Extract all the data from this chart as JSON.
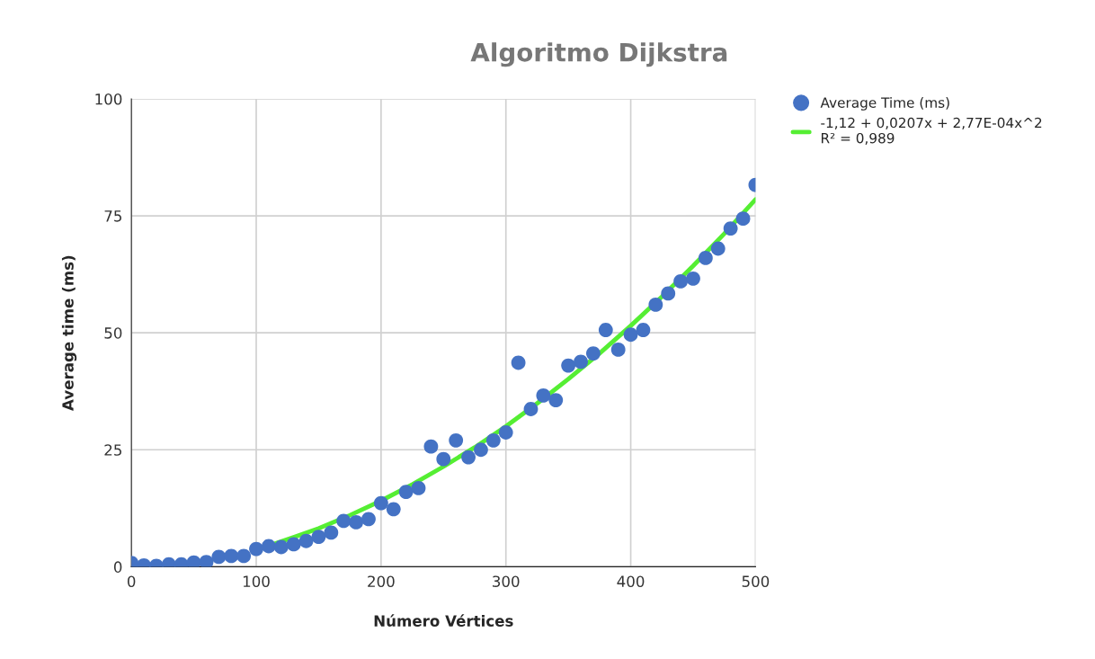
{
  "chart_data": {
    "type": "scatter",
    "title": "Algoritmo Dijkstra",
    "xlabel": "Número Vértices",
    "ylabel": "Average time (ms)",
    "xlim": [
      0,
      500
    ],
    "xticks": [
      0,
      100,
      200,
      300,
      400,
      500
    ],
    "ylim": [
      0,
      100
    ],
    "yticks": [
      0,
      25,
      50,
      75,
      100
    ],
    "grid": true,
    "legend": "top right",
    "marker": "circle",
    "series": [
      {
        "name": "Average Time (ms)",
        "color": "#4472c4",
        "x": [
          0,
          10,
          20,
          30,
          40,
          50,
          60,
          70,
          80,
          90,
          100,
          110,
          120,
          130,
          140,
          150,
          160,
          170,
          180,
          190,
          200,
          210,
          220,
          230,
          240,
          250,
          260,
          270,
          280,
          290,
          300,
          310,
          320,
          330,
          340,
          350,
          360,
          370,
          380,
          390,
          400,
          410,
          420,
          430,
          440,
          450,
          460,
          470,
          480,
          490,
          500
        ],
        "values": [
          0.8,
          0.3,
          0.2,
          0.5,
          0.5,
          0.9,
          1.0,
          2.1,
          2.3,
          2.3,
          3.8,
          4.4,
          4.2,
          4.8,
          5.5,
          6.4,
          7.3,
          9.8,
          9.5,
          10.2,
          13.6,
          12.3,
          16.0,
          16.8,
          25.7,
          23.0,
          27.0,
          23.4,
          25.0,
          27.0,
          28.7,
          43.6,
          33.7,
          36.6,
          35.6,
          43.0,
          43.8,
          45.6,
          50.6,
          46.4,
          49.6,
          50.6,
          56.0,
          58.4,
          61.0,
          61.6,
          66.0,
          68.0,
          72.3,
          74.4,
          81.6
        ]
      },
      {
        "name": "-1,12 + 0,0207x + 2,77E-04x^2\nR² = 0,989",
        "type": "line",
        "color": "#55ee33",
        "marker": "none",
        "line_style": "solid",
        "x": [
          110,
          130,
          150,
          175,
          200,
          225,
          250,
          275,
          300,
          325,
          350,
          375,
          400,
          425,
          450,
          475,
          500
        ],
        "values": [
          4.5,
          6.3,
          8.2,
          11.0,
          14.1,
          17.6,
          21.4,
          25.5,
          30.0,
          34.9,
          40.1,
          45.6,
          51.5,
          57.7,
          64.3,
          71.2,
          78.5
        ]
      }
    ]
  }
}
